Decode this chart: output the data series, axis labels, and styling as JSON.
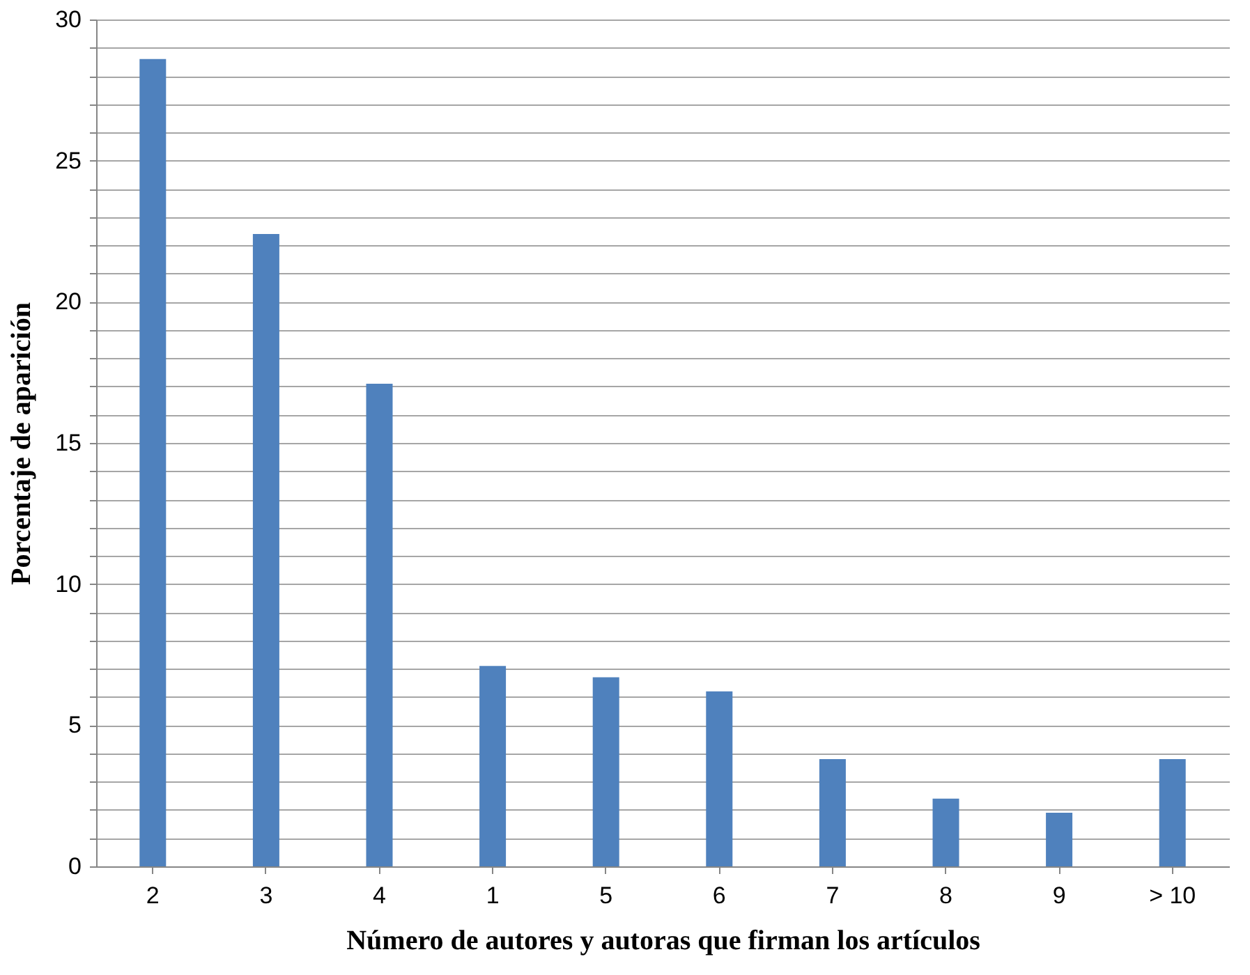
{
  "chart_data": {
    "type": "bar",
    "xlabel": "Número de autores y autoras que firman los artículos",
    "ylabel": "Porcentaje de aparición",
    "categories": [
      "2",
      "3",
      "4",
      "1",
      "5",
      "6",
      "7",
      "8",
      "9",
      "> 10"
    ],
    "values": [
      28.6,
      22.4,
      17.1,
      7.1,
      6.7,
      6.2,
      3.8,
      2.4,
      1.9,
      3.8
    ],
    "color": "#4f81bd",
    "ylim": [
      0,
      30
    ],
    "yticks": [
      0,
      {
        "value": 1,
        "label": null
      },
      {
        "value": 2,
        "label": null
      },
      {
        "value": 3,
        "label": null
      },
      {
        "value": 4,
        "label": null
      },
      5,
      {
        "value": 6,
        "label": null
      },
      {
        "value": 7,
        "label": null
      },
      {
        "value": 8,
        "label": null
      },
      {
        "value": 9,
        "label": null
      },
      10,
      {
        "value": 11,
        "label": null
      },
      {
        "value": 12,
        "label": null
      },
      {
        "value": 13,
        "label": null
      },
      {
        "value": 14,
        "label": null
      },
      15,
      {
        "value": 16,
        "label": null
      },
      {
        "value": 17,
        "label": null
      },
      {
        "value": 18,
        "label": null
      },
      {
        "value": 19,
        "label": null
      },
      20,
      {
        "value": 21,
        "label": null
      },
      {
        "value": 22,
        "label": null
      },
      {
        "value": 23,
        "label": null
      },
      {
        "value": 24,
        "label": null
      },
      25,
      {
        "value": 26,
        "label": null
      },
      {
        "value": 27,
        "label": null
      },
      {
        "value": 28,
        "label": null
      },
      {
        "value": 29,
        "label": null
      },
      30
    ],
    "grid": "y"
  }
}
